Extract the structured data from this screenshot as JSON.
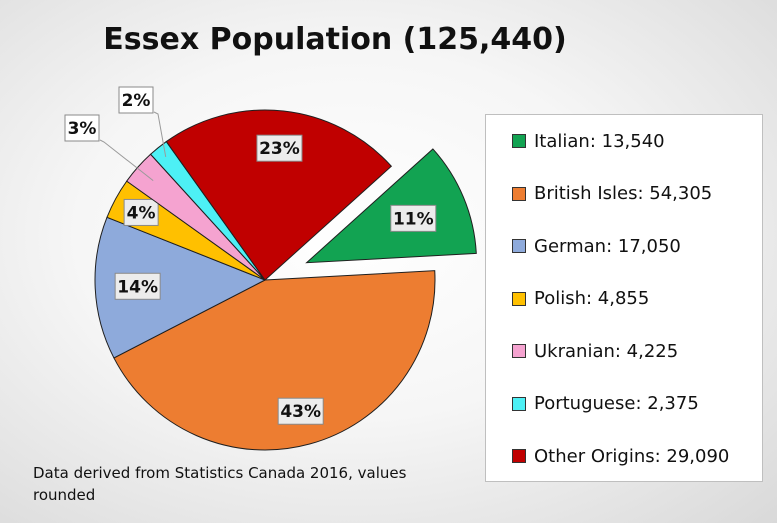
{
  "chart_data": {
    "type": "pie",
    "title": "Essex Population (125,440)",
    "slices": [
      {
        "name": "Italian",
        "legend": "Italian: 13,540",
        "value": 13540,
        "label": "11%",
        "color": "#12a352",
        "exploded": true
      },
      {
        "name": "British Isles",
        "legend": "British Isles: 54,305",
        "value": 54305,
        "label": "43%",
        "color": "#ed7d31",
        "exploded": false
      },
      {
        "name": "German",
        "legend": "German: 17,050",
        "value": 17050,
        "label": "14%",
        "color": "#8eaadb",
        "exploded": false
      },
      {
        "name": "Polish",
        "legend": "Polish: 4,855",
        "value": 4855,
        "label": "4%",
        "color": "#ffc000",
        "exploded": false
      },
      {
        "name": "Ukranian",
        "legend": "Ukranian: 4,225",
        "value": 4225,
        "label": "3%",
        "color": "#f5a3d0",
        "exploded": false
      },
      {
        "name": "Portuguese",
        "legend": "Portuguese: 2,375",
        "value": 2375,
        "label": "2%",
        "color": "#4df0f5",
        "exploded": false
      },
      {
        "name": "Other Origins",
        "legend": "Other Origins: 29,090",
        "value": 29090,
        "label": "23%",
        "color": "#c00000",
        "exploded": false
      }
    ],
    "legend_position": "right"
  },
  "footnote": "Data derived from Statistics Canada 2016, values rounded"
}
